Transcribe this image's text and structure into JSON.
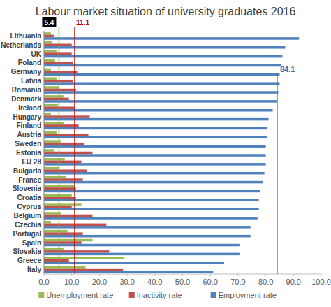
{
  "chart_data": {
    "type": "bar",
    "orientation": "horizontal",
    "title": "Labour market situation of university graduates 2016",
    "categories": [
      "Lithuania",
      "Netherlands",
      "UK",
      "Poland",
      "Germany",
      "Latvia",
      "Romania",
      "Denmark",
      "Ireland",
      "Hungary",
      "Finland",
      "Austria",
      "Sweden",
      "Estonia",
      "EU 28",
      "Bulgaria",
      "France",
      "Slovenia",
      "Croatia",
      "Cyprus",
      "Belgium",
      "Czechia",
      "Portugal",
      "Spain",
      "Slovakia",
      "Greece",
      "Italy"
    ],
    "series": [
      {
        "name": "Unemployment rate",
        "color": "#9bbb59",
        "values": [
          2.5,
          3,
          4.5,
          4,
          2.5,
          4.5,
          5.5,
          7,
          5,
          2.5,
          7,
          4.5,
          6,
          3.5,
          7.5,
          5.5,
          8,
          11,
          10,
          13.5,
          6,
          2.5,
          8.5,
          17.5,
          7,
          29,
          15
        ]
      },
      {
        "name": "Inactivity rate",
        "color": "#c0504d",
        "values": [
          3.5,
          10,
          10,
          10.5,
          12,
          10.5,
          11.5,
          9,
          11,
          16.5,
          12.5,
          16,
          14.5,
          17.5,
          13.5,
          15.5,
          14,
          11.5,
          11.5,
          10,
          17.5,
          22.5,
          14,
          13.5,
          23.5,
          9,
          28.5
        ]
      },
      {
        "name": "Employment rate",
        "color": "#4f81bd",
        "values": [
          92,
          87,
          86,
          85.5,
          85,
          85,
          84.5,
          84,
          82.5,
          81,
          80.5,
          80.5,
          80,
          80,
          80,
          79.5,
          79,
          78,
          77.5,
          77.5,
          77,
          74.5,
          74.5,
          70.5,
          70.5,
          65,
          61
        ]
      }
    ],
    "xlim": [
      0,
      100
    ],
    "xticks": [
      {
        "value": 0,
        "label": "0.0"
      },
      {
        "value": 10,
        "label": "10.0"
      },
      {
        "value": 20,
        "label": "20.0"
      },
      {
        "value": 30,
        "label": "30.0"
      },
      {
        "value": 40,
        "label": "40.0"
      },
      {
        "value": 50,
        "label": "50.0"
      },
      {
        "value": 60,
        "label": "60.0"
      },
      {
        "value": 70,
        "label": "70.0"
      },
      {
        "value": 80,
        "label": "80.0"
      },
      {
        "value": 90,
        "label": "90.0"
      },
      {
        "value": 100,
        "label": "100.0"
      }
    ],
    "reference_lines": [
      {
        "value": 5.4,
        "color": "#70ad47"
      },
      {
        "value": 11.1,
        "color": "#c00000"
      },
      {
        "value": 84.1,
        "color": "#2e75b6"
      }
    ],
    "grid": false,
    "legend": "bottom"
  }
}
